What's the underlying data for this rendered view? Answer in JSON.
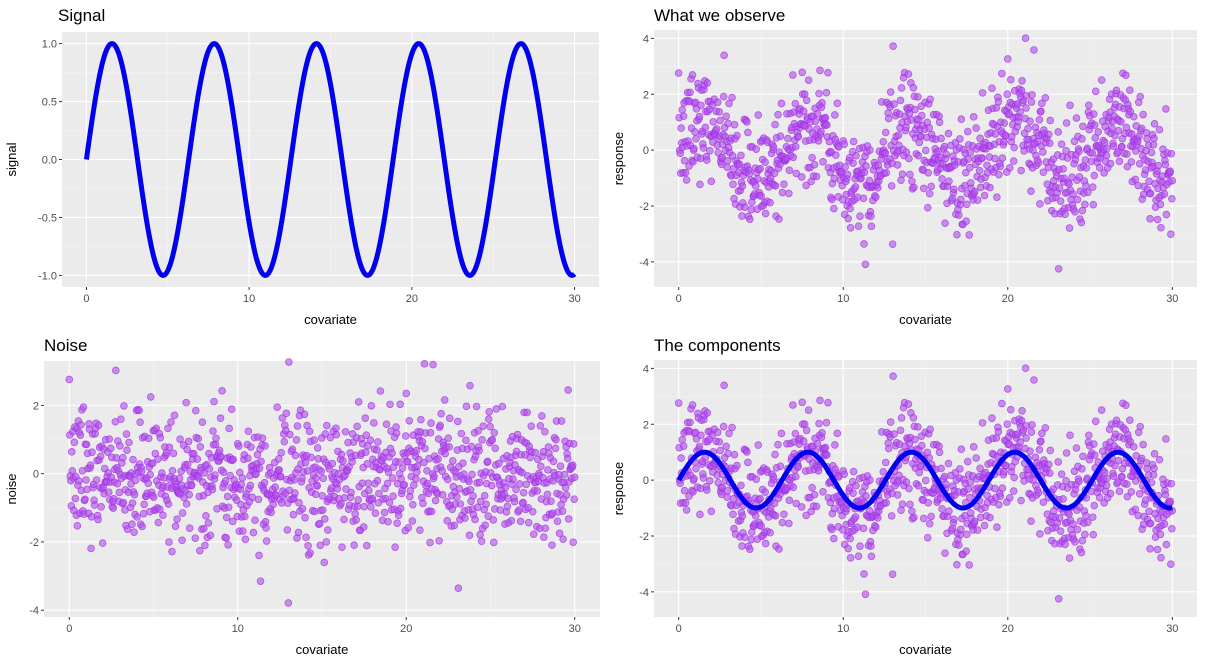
{
  "colors": {
    "panel_bg": "#ebebeb",
    "grid_major": "#ffffff",
    "grid_minor": "#f4f4f4",
    "line": "#0000ee",
    "point_fill": "#b44ff0",
    "point_stroke": "#9a2fdc"
  },
  "chart_data": [
    {
      "id": "signal",
      "type": "line",
      "title": "Signal",
      "xlabel": "covariate",
      "ylabel": "signal",
      "xlim": [
        -1.5,
        31.5
      ],
      "ylim": [
        -1.1,
        1.1
      ],
      "xticks": [
        0,
        10,
        20,
        30
      ],
      "yticks": [
        -1.0,
        -0.5,
        0.0,
        0.5,
        1.0
      ],
      "ytick_labels": [
        "-1.0",
        "-0.5",
        "0.0",
        "0.5",
        "1.0"
      ],
      "grid": true,
      "series": [
        {
          "kind": "line",
          "function": "sin",
          "x_range": [
            0,
            30
          ],
          "samples": 600
        }
      ]
    },
    {
      "id": "observed",
      "type": "scatter",
      "title": "What we observe",
      "xlabel": "covariate",
      "ylabel": "response",
      "xlim": [
        -1.5,
        31.5
      ],
      "ylim": [
        -4.9,
        4.3
      ],
      "xticks": [
        0,
        10,
        20,
        30
      ],
      "yticks": [
        -4,
        -2,
        0,
        2,
        4
      ],
      "ytick_labels": [
        "-4",
        "-2",
        "0",
        "2",
        "4"
      ],
      "grid": true,
      "series": [
        {
          "kind": "points",
          "source": "response",
          "n": 1000,
          "x_range": [
            0,
            30
          ],
          "noise_sd": 1.0,
          "seed": 7
        }
      ]
    },
    {
      "id": "noise",
      "type": "scatter",
      "title": "Noise",
      "xlabel": "covariate",
      "ylabel": "noise",
      "xlim": [
        -1.5,
        31.5
      ],
      "ylim": [
        -4.2,
        3.3
      ],
      "xticks": [
        0,
        10,
        20,
        30
      ],
      "yticks": [
        -4,
        -2,
        0,
        2
      ],
      "ytick_labels": [
        "-4",
        "-2",
        "0",
        "2"
      ],
      "grid": true,
      "series": [
        {
          "kind": "points",
          "source": "noise",
          "n": 1000,
          "x_range": [
            0,
            30
          ],
          "noise_sd": 1.0,
          "seed": 7
        }
      ]
    },
    {
      "id": "components",
      "type": "scatter",
      "title": "The components",
      "xlabel": "covariate",
      "ylabel": "response",
      "xlim": [
        -1.5,
        31.5
      ],
      "ylim": [
        -4.9,
        4.3
      ],
      "xticks": [
        0,
        10,
        20,
        30
      ],
      "yticks": [
        -4,
        -2,
        0,
        2,
        4
      ],
      "ytick_labels": [
        "-4",
        "-2",
        "0",
        "2",
        "4"
      ],
      "grid": true,
      "series": [
        {
          "kind": "points",
          "source": "response",
          "n": 1000,
          "x_range": [
            0,
            30
          ],
          "noise_sd": 1.0,
          "seed": 7
        },
        {
          "kind": "line",
          "function": "sin",
          "x_range": [
            0,
            30
          ],
          "samples": 600
        }
      ]
    }
  ]
}
